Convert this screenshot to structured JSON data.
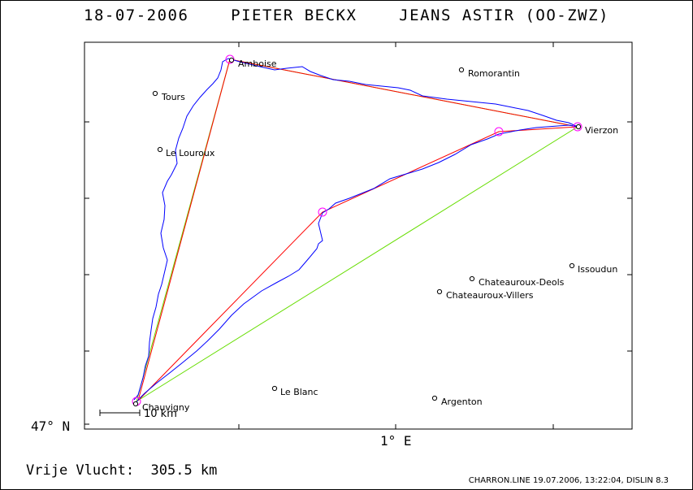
{
  "title": "18-07-2006    PIETER BECKX    JEANS ASTIR (OO-ZWZ)",
  "axes": {
    "y_label": "47° N",
    "x_label": "1° E"
  },
  "scale_bar_label": "10 km",
  "places": [
    {
      "name": "Amboise"
    },
    {
      "name": "Tours"
    },
    {
      "name": "Le Louroux"
    },
    {
      "name": "Romorantin"
    },
    {
      "name": "Vierzon"
    },
    {
      "name": "Issoudun"
    },
    {
      "name": "Chateauroux-Deols"
    },
    {
      "name": "Chateauroux-Villers"
    },
    {
      "name": "Le Blanc"
    },
    {
      "name": "Argenton"
    },
    {
      "name": "Chauvigny"
    }
  ],
  "turnpoints": [
    "Chauvigny",
    "Amboise",
    "Vierzon",
    "",
    "",
    "Chauvigny"
  ],
  "distance": "Vrije Vlucht:  305.5 km",
  "footer": "CHARRON.LINE 19.07.2006, 13:22:04, DISLIN 8.3",
  "colors": {
    "track": "#0000ff",
    "task_line": "#ff0000",
    "triangle_line": "#66dd00",
    "turnpoint_circle": "#ff00ff"
  }
}
